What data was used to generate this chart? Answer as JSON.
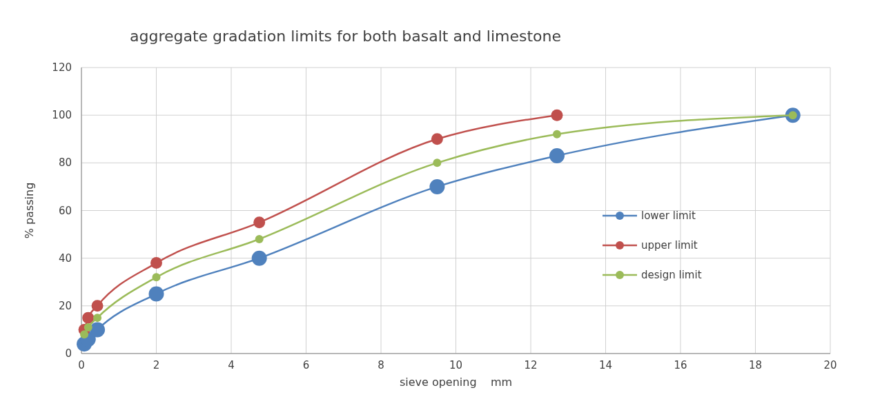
{
  "chart_data": {
    "type": "line",
    "title": "aggregate gradation limits for both basalt and limestone",
    "xlabel": "sieve opening    mm",
    "ylabel": "% passing",
    "xlim": [
      0,
      20
    ],
    "xticks": [
      0,
      2,
      4,
      6,
      8,
      10,
      12,
      14,
      16,
      18,
      20
    ],
    "ylim": [
      0,
      120
    ],
    "yticks": [
      0,
      20,
      40,
      60,
      80,
      100,
      120
    ],
    "grid": true,
    "legend": "right",
    "marker": "circle",
    "line_style": "solid",
    "series": [
      {
        "name": "lower limit",
        "color": "#4f81bd",
        "x": [
          0.075,
          0.18,
          0.425,
          2,
          4.75,
          9.5,
          12.7,
          19
        ],
        "values": [
          4,
          6,
          10,
          25,
          40,
          70,
          83,
          100
        ]
      },
      {
        "name": "upper limit",
        "color": "#c0504d",
        "x": [
          0.075,
          0.18,
          0.425,
          2,
          4.75,
          9.5,
          12.7
        ],
        "values": [
          10,
          15,
          20,
          38,
          55,
          90,
          100
        ]
      },
      {
        "name": "design limit",
        "color": "#9bbb59",
        "x": [
          0.075,
          0.18,
          0.425,
          2,
          4.75,
          9.5,
          12.7,
          19
        ],
        "values": [
          8,
          11,
          15,
          32,
          48,
          80,
          92,
          100
        ]
      }
    ]
  }
}
